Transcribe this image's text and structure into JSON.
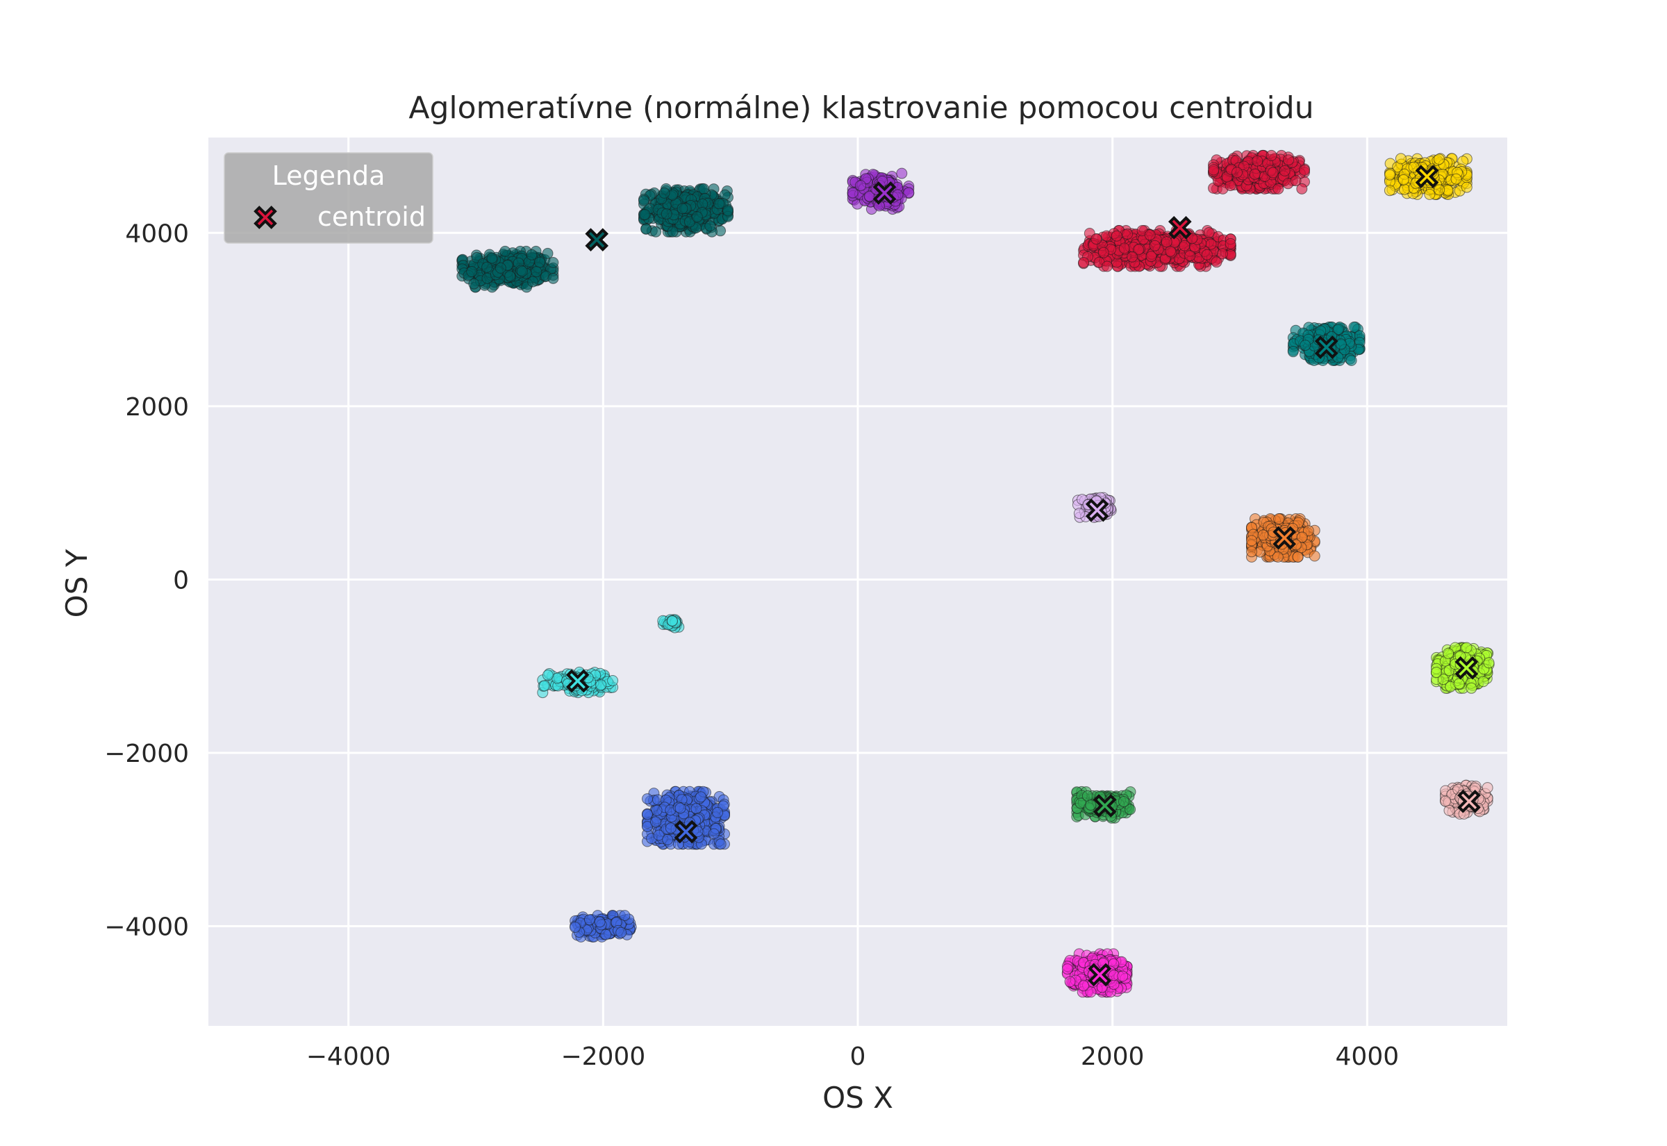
{
  "chart_data": {
    "type": "scatter",
    "title": "Aglomeratívne (normálne) klastrovanie pomocou centroidu",
    "xlabel": "OS X",
    "ylabel": "OS Y",
    "xlim": [
      -5100,
      5100
    ],
    "ylim": [
      -5150,
      5100
    ],
    "xticks": [
      -4000,
      -2000,
      0,
      2000,
      4000
    ],
    "yticks": [
      -4000,
      -2000,
      0,
      2000,
      4000
    ],
    "xtick_labels": [
      "−4000",
      "−2000",
      "0",
      "2000",
      "4000"
    ],
    "ytick_labels": [
      "−4000",
      "−2000",
      "0",
      "2000",
      "4000"
    ],
    "grid": true,
    "background": "#eaeaf2",
    "legend": {
      "title": "Legenda",
      "location": "top-left",
      "entries": [
        {
          "label": "centroid",
          "marker": "X",
          "color": "#dc143c"
        }
      ]
    },
    "clusters": [
      {
        "color": "#006060",
        "centroid": [
          -2050,
          3920
        ],
        "blobs": [
          {
            "center": [
              -2750,
              3580
            ],
            "spread": [
              260,
              150
            ],
            "count": 420
          },
          {
            "center": [
              -1350,
              4260
            ],
            "spread": [
              240,
              180
            ],
            "count": 420
          }
        ]
      },
      {
        "color": "#9932cc",
        "centroid": [
          210,
          4460
        ],
        "blobs": [
          {
            "center": [
              180,
              4480
            ],
            "spread": [
              160,
              150
            ],
            "count": 260
          }
        ]
      },
      {
        "color": "#dc143c",
        "centroid": [
          2530,
          4060
        ],
        "blobs": [
          {
            "center": [
              3150,
              4700
            ],
            "spread": [
              260,
              140
            ],
            "count": 400
          },
          {
            "center": [
              2350,
              3820
            ],
            "spread": [
              420,
              150
            ],
            "count": 650
          }
        ]
      },
      {
        "color": "#ffd700",
        "centroid": [
          4470,
          4650
        ],
        "blobs": [
          {
            "center": [
              4480,
              4650
            ],
            "spread": [
              220,
              150
            ],
            "count": 380
          }
        ]
      },
      {
        "color": "#008080",
        "centroid": [
          3680,
          2680
        ],
        "blobs": [
          {
            "center": [
              3680,
              2720
            ],
            "spread": [
              190,
              140
            ],
            "count": 380
          }
        ]
      },
      {
        "color": "#d9b0f0",
        "centroid": [
          1880,
          800
        ],
        "blobs": [
          {
            "center": [
              1880,
              820
            ],
            "spread": [
              110,
              90
            ],
            "count": 90
          }
        ]
      },
      {
        "color": "#f28030",
        "centroid": [
          3350,
          480
        ],
        "blobs": [
          {
            "center": [
              3340,
              480
            ],
            "spread": [
              180,
              160
            ],
            "count": 380
          }
        ]
      },
      {
        "color": "#40e0e0",
        "centroid": [
          -2200,
          -1170
        ],
        "blobs": [
          {
            "center": [
              -2200,
              -1180
            ],
            "spread": [
              200,
              90
            ],
            "count": 130
          },
          {
            "center": [
              -1450,
              -500
            ],
            "spread": [
              60,
              40
            ],
            "count": 30
          }
        ]
      },
      {
        "color": "#adff2f",
        "centroid": [
          4780,
          -1020
        ],
        "blobs": [
          {
            "center": [
              4750,
              -1020
            ],
            "spread": [
              150,
              170
            ],
            "count": 380
          }
        ]
      },
      {
        "color": "#4169e1",
        "centroid": [
          -1350,
          -2910
        ],
        "blobs": [
          {
            "center": [
              -1350,
              -2750
            ],
            "spread": [
              220,
              220
            ],
            "count": 650
          },
          {
            "center": [
              -2000,
              -4000
            ],
            "spread": [
              160,
              90
            ],
            "count": 200
          }
        ]
      },
      {
        "color": "#32a852",
        "centroid": [
          1940,
          -2610
        ],
        "blobs": [
          {
            "center": [
              1940,
              -2600
            ],
            "spread": [
              160,
              110
            ],
            "count": 230
          }
        ]
      },
      {
        "color": "#f4b8b8",
        "centroid": [
          4800,
          -2560
        ],
        "blobs": [
          {
            "center": [
              4780,
              -2540
            ],
            "spread": [
              120,
              120
            ],
            "count": 180
          }
        ]
      },
      {
        "color": "#ff2bd8",
        "centroid": [
          1900,
          -4560
        ],
        "blobs": [
          {
            "center": [
              1880,
              -4540
            ],
            "spread": [
              170,
              160
            ],
            "count": 380
          }
        ]
      }
    ]
  }
}
